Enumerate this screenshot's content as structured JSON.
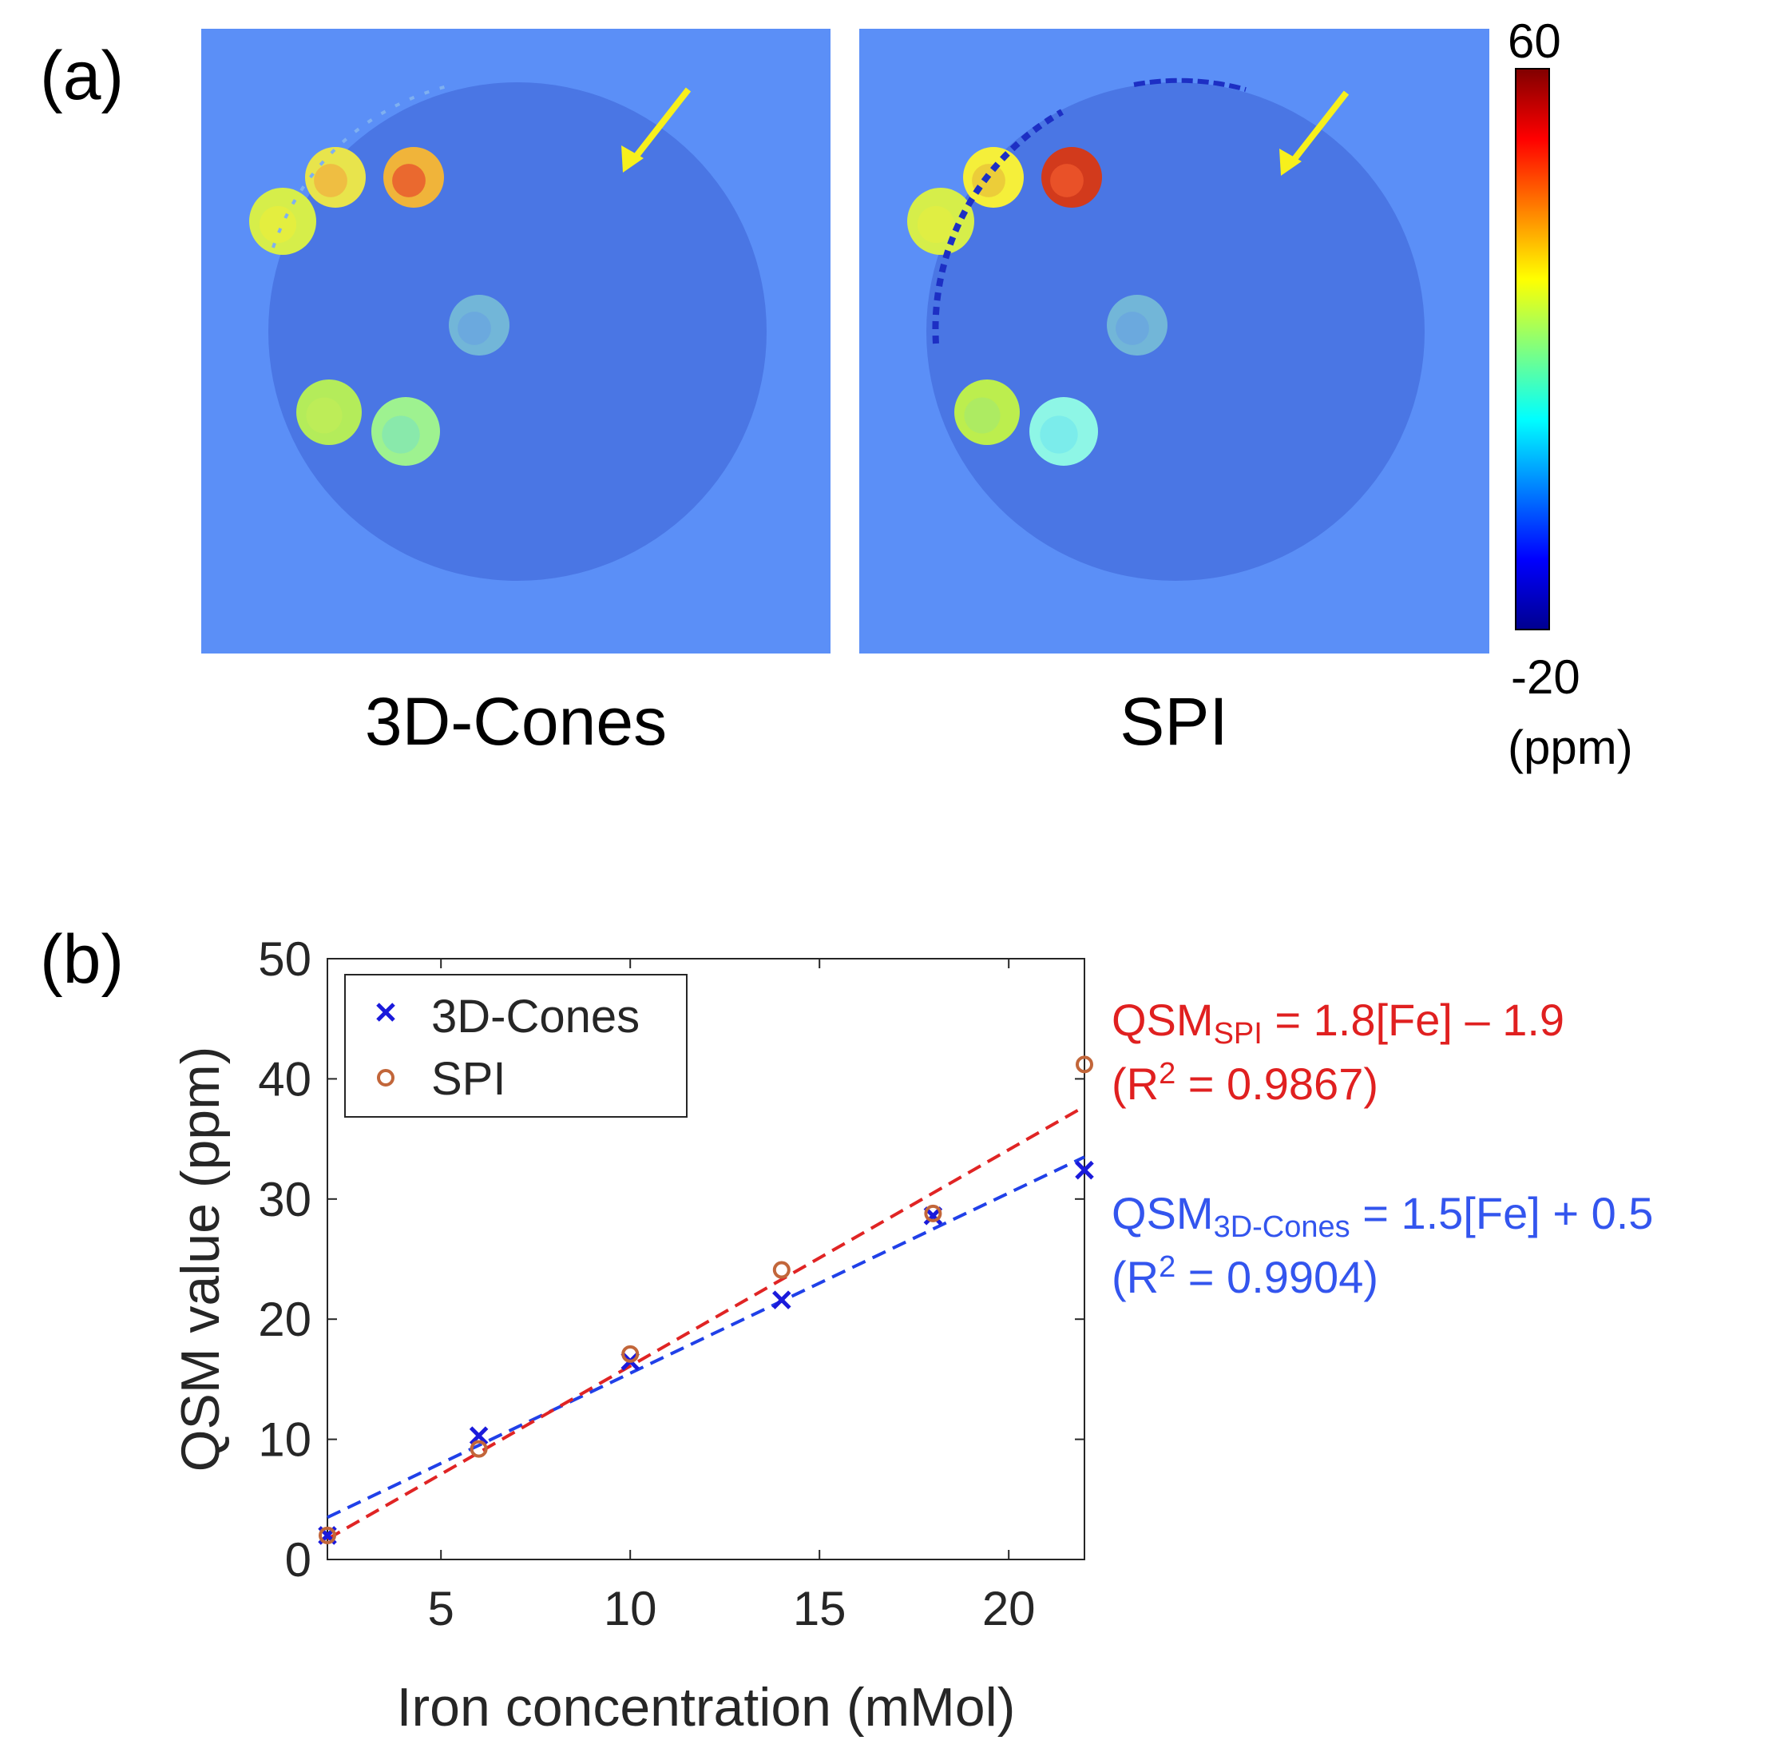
{
  "panel_a": {
    "label": "(a)",
    "images": [
      {
        "caption": "3D-Cones",
        "vials": [
          [
            "#e8e44c",
            "#f2b13f"
          ],
          [
            "#f0b43a",
            "#e8502c"
          ],
          [
            "#d6ee4a",
            "#e8ee3c"
          ],
          [
            "#72b6d8",
            "#6aa4e0"
          ],
          [
            "#b4ec5a",
            "#c0ee58"
          ],
          [
            "#9ef290",
            "#82e6b4"
          ]
        ]
      },
      {
        "caption": "SPI",
        "vials": [
          [
            "#f5ef3a",
            "#e8c23a"
          ],
          [
            "#d23a1c",
            "#f05a2c"
          ],
          [
            "#d6ee4a",
            "#e3ee42"
          ],
          [
            "#72b6d8",
            "#6aa4e0"
          ],
          [
            "#bcee4e",
            "#a8ea6a"
          ],
          [
            "#8ef6e6",
            "#74e8ec"
          ]
        ]
      }
    ],
    "colorbar": {
      "max": "60",
      "min": "-20",
      "unit": "(ppm)"
    }
  },
  "panel_b": {
    "label": "(b)",
    "eq_spi": {
      "prefix": "QSM",
      "sub": "SPI",
      "rhs": " = 1.8[Fe] – 1.9",
      "r2_open": "(R",
      "r2_sup": "2",
      "r2_rest": " = 0.9867)"
    },
    "eq_cones": {
      "prefix": "QSM",
      "sub": "3D-Cones",
      "rhs": " = 1.5[Fe] + 0.5",
      "r2_open": "(R",
      "r2_sup": "2",
      "r2_rest": " = 0.9904)"
    }
  },
  "colors": {
    "cones": "#1a1adb",
    "spi": "#c2663a",
    "fit_spi": "#e02424",
    "fit_cones": "#2040e8",
    "eq_spi": "#e02020",
    "eq_cones": "#3355ee",
    "image_bg": "#5b8ff7",
    "phantom": "#4a76e4"
  },
  "chart_data": {
    "type": "scatter",
    "title": "",
    "xlabel": "Iron concentration (mMol)",
    "ylabel": "QSM value (ppm)",
    "xlim": [
      2,
      22
    ],
    "ylim": [
      0,
      50
    ],
    "xticks": [
      5,
      10,
      15,
      20
    ],
    "yticks": [
      0,
      10,
      20,
      30,
      40,
      50
    ],
    "legend_position": "top-left",
    "series": [
      {
        "name": "3D-Cones",
        "marker": "x",
        "x": [
          2,
          6,
          10,
          14,
          18,
          22
        ],
        "y": [
          2.0,
          10.3,
          16.5,
          21.6,
          28.6,
          32.4
        ],
        "fit": {
          "slope": 1.5,
          "intercept": 0.5
        }
      },
      {
        "name": "SPI",
        "marker": "o",
        "x": [
          2,
          6,
          10,
          14,
          18,
          22
        ],
        "y": [
          2.0,
          9.2,
          17.1,
          24.1,
          28.8,
          41.2
        ],
        "fit": {
          "slope": 1.8,
          "intercept": -1.9
        }
      }
    ]
  }
}
